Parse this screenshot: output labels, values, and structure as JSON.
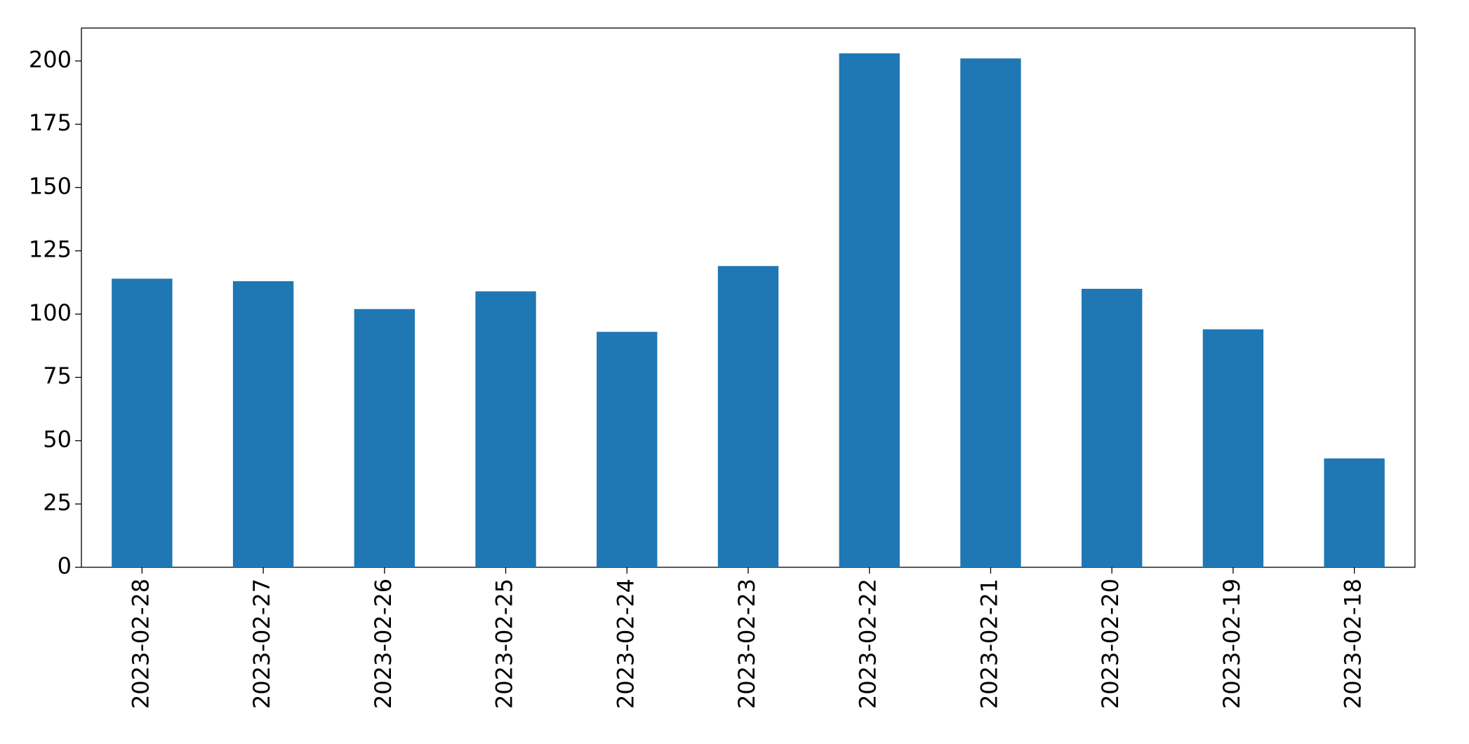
{
  "chart_data": {
    "type": "bar",
    "categories": [
      "2023-02-28",
      "2023-02-27",
      "2023-02-26",
      "2023-02-25",
      "2023-02-24",
      "2023-02-23",
      "2023-02-22",
      "2023-02-21",
      "2023-02-20",
      "2023-02-19",
      "2023-02-18"
    ],
    "values": [
      114,
      113,
      102,
      109,
      93,
      119,
      203,
      201,
      110,
      94,
      43
    ],
    "color": "#1f77b4",
    "ylim": [
      0,
      213
    ],
    "yticks": [
      0,
      25,
      50,
      75,
      100,
      125,
      150,
      175,
      200
    ],
    "grid": false
  }
}
